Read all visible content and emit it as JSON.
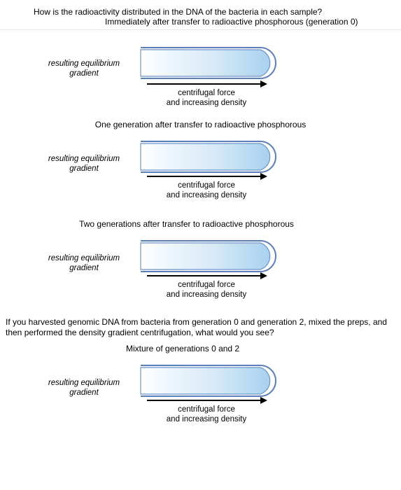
{
  "header": {
    "line1": "How is the radioactivity distributed in the DNA of the bacteria in each sample?",
    "line2": "Immediately after transfer to radioactive phosphorous (generation 0)"
  },
  "common": {
    "eq_label_l1": "resulting equilibrium",
    "eq_label_l2": "gradient",
    "cf_l1": "centrifugal force",
    "cf_l2": "and increasing density"
  },
  "tube_style": {
    "width": 195,
    "height": 46,
    "outer_stroke": "#5d7fb9",
    "outer_stroke_w": 2,
    "inner_stroke": "#6d93c7",
    "inner_stroke_w": 1.2,
    "gap": 3,
    "grad_left": "#ffffff",
    "grad_right": "#a9d1ef",
    "cap_radius": 23
  },
  "sections": {
    "s1": {
      "title": "One generation after transfer to radioactive phosphorous"
    },
    "s2": {
      "title": "Two generations after transfer to radioactive phosphorous"
    },
    "mix_question": "If you harvested genomic DNA from bacteria from generation 0 and generation 2, mixed the preps, and then performed the density gradient centrifugation, what would you see?",
    "s3": {
      "title": "Mixture of generations 0 and 2"
    }
  },
  "arrow": {
    "color": "#000000"
  }
}
